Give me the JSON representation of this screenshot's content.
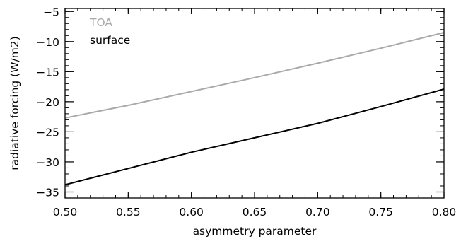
{
  "chart_data": {
    "type": "line",
    "xlabel": "asymmetry parameter",
    "ylabel": "radiative forcing (W/m2)",
    "xlim": [
      0.5,
      0.8
    ],
    "ylim": [
      -36,
      -4.5
    ],
    "x_ticks": [
      0.5,
      0.55,
      0.6,
      0.65,
      0.7,
      0.75,
      0.8
    ],
    "x_tick_labels": [
      "0.50",
      "0.55",
      "0.60",
      "0.65",
      "0.70",
      "0.75",
      "0.80"
    ],
    "y_ticks": [
      -35,
      -30,
      -25,
      -20,
      -15,
      -10,
      -5
    ],
    "y_tick_labels": [
      "−35",
      "−30",
      "−25",
      "−20",
      "−15",
      "−10",
      "−5"
    ],
    "grid": false,
    "legend_position": "top-left",
    "x": [
      0.5,
      0.55,
      0.6,
      0.65,
      0.7,
      0.75,
      0.8
    ],
    "series": [
      {
        "name": "TOA",
        "color": "#aaaaaa",
        "values": [
          -22.7,
          -20.6,
          -18.3,
          -16.0,
          -13.6,
          -11.1,
          -8.5
        ]
      },
      {
        "name": "surface",
        "color": "#000000",
        "values": [
          -33.8,
          -31.1,
          -28.4,
          -26.0,
          -23.6,
          -20.8,
          -17.9
        ]
      }
    ]
  }
}
